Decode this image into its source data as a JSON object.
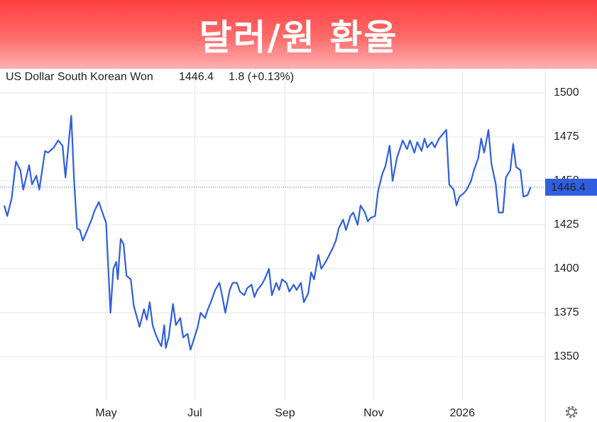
{
  "chart_data": {
    "type": "line",
    "title": "달러/원 환율",
    "current": 1446.4,
    "change": "1.8 (+0.13%)",
    "x": [
      -70,
      -68,
      -65,
      -62,
      -59,
      -57,
      -53,
      -51,
      -48,
      -46,
      -42,
      -40,
      -36,
      -33,
      -30,
      -28,
      -24,
      -22,
      -20,
      -18,
      -16,
      -13,
      -10,
      -8,
      -5,
      -3,
      0,
      3,
      5,
      7,
      8,
      10,
      12,
      14,
      17,
      19,
      21,
      23,
      26,
      28,
      30,
      32,
      34,
      36,
      38,
      40,
      41,
      43,
      46,
      48,
      51,
      53,
      56,
      58,
      60,
      63,
      65,
      68,
      70,
      72,
      75,
      78,
      80,
      82,
      85,
      87,
      90,
      92,
      95,
      97,
      100,
      102,
      104,
      107,
      109,
      112,
      114,
      117,
      119,
      121,
      124,
      126,
      129,
      131,
      134,
      136,
      139,
      141,
      143,
      146,
      148,
      151,
      153,
      156,
      158,
      160,
      163,
      165,
      168,
      170,
      173,
      175,
      178,
      180,
      182,
      185,
      187,
      190,
      192,
      195,
      197,
      200,
      202,
      204,
      207,
      209,
      212,
      214,
      217,
      219,
      221,
      224,
      226,
      229,
      231,
      234,
      236,
      239,
      241,
      243,
      246,
      248,
      251,
      253,
      256,
      258,
      260,
      263,
      265,
      268,
      270,
      273,
      275,
      278,
      280,
      282,
      285,
      287,
      290,
      292
    ],
    "series": [
      {
        "name": "US Dollar South Korean Won",
        "color": "#2f5fe0",
        "values": [
          1436,
          1430,
          1440,
          1461,
          1456,
          1445,
          1459,
          1448,
          1453,
          1445,
          1467,
          1466,
          1469,
          1473,
          1470,
          1452,
          1487,
          1450,
          1423,
          1422,
          1416,
          1422,
          1428,
          1433,
          1438,
          1433,
          1426,
          1375,
          1400,
          1404,
          1394,
          1417,
          1414,
          1396,
          1394,
          1379,
          1373,
          1367,
          1377,
          1371,
          1381,
          1368,
          1363,
          1359,
          1356,
          1368,
          1355,
          1361,
          1380,
          1368,
          1372,
          1361,
          1363,
          1354,
          1359,
          1367,
          1375,
          1372,
          1377,
          1381,
          1388,
          1392,
          1384,
          1375,
          1388,
          1392,
          1392,
          1387,
          1385,
          1389,
          1391,
          1384,
          1388,
          1391,
          1394,
          1400,
          1385,
          1392,
          1388,
          1394,
          1392,
          1387,
          1391,
          1388,
          1392,
          1381,
          1386,
          1398,
          1394,
          1408,
          1400,
          1404,
          1407,
          1412,
          1416,
          1423,
          1428,
          1422,
          1430,
          1432,
          1425,
          1436,
          1432,
          1427,
          1429,
          1430,
          1444,
          1454,
          1458,
          1470,
          1450,
          1463,
          1468,
          1473,
          1468,
          1473,
          1466,
          1472,
          1467,
          1474,
          1469,
          1472,
          1469,
          1474,
          1476,
          1479,
          1448,
          1445,
          1436,
          1441,
          1443,
          1445,
          1450,
          1456,
          1463,
          1474,
          1466,
          1479,
          1460,
          1448,
          1432,
          1432,
          1452,
          1456,
          1471,
          1458,
          1456,
          1441,
          1442,
          1446.4
        ]
      }
    ],
    "xlim": [
      -73,
      302
    ],
    "xticks": [
      {
        "value": 0,
        "label": "May"
      },
      {
        "value": 61,
        "label": "Jul"
      },
      {
        "value": 123,
        "label": "Sep"
      },
      {
        "value": 184,
        "label": "Nov"
      },
      {
        "value": 245,
        "label": "2026"
      }
    ],
    "ylim": [
      1325,
      1512.5
    ],
    "yticks": [
      1350,
      1375,
      1400,
      1425,
      1450,
      1475,
      1500
    ],
    "grid": true,
    "change_color": "#3bb54a"
  }
}
